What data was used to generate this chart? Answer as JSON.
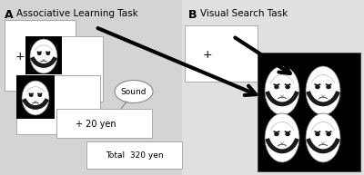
{
  "bg_color": "#d4d4d4",
  "white": "#ffffff",
  "black": "#000000",
  "gray_border": "#999999",
  "panel_a_title": "Associative Learning Task",
  "panel_b_title": "Visual Search Task",
  "label_a": "A",
  "label_b": "B",
  "title_fontsize": 7.5,
  "label_fontsize": 9
}
